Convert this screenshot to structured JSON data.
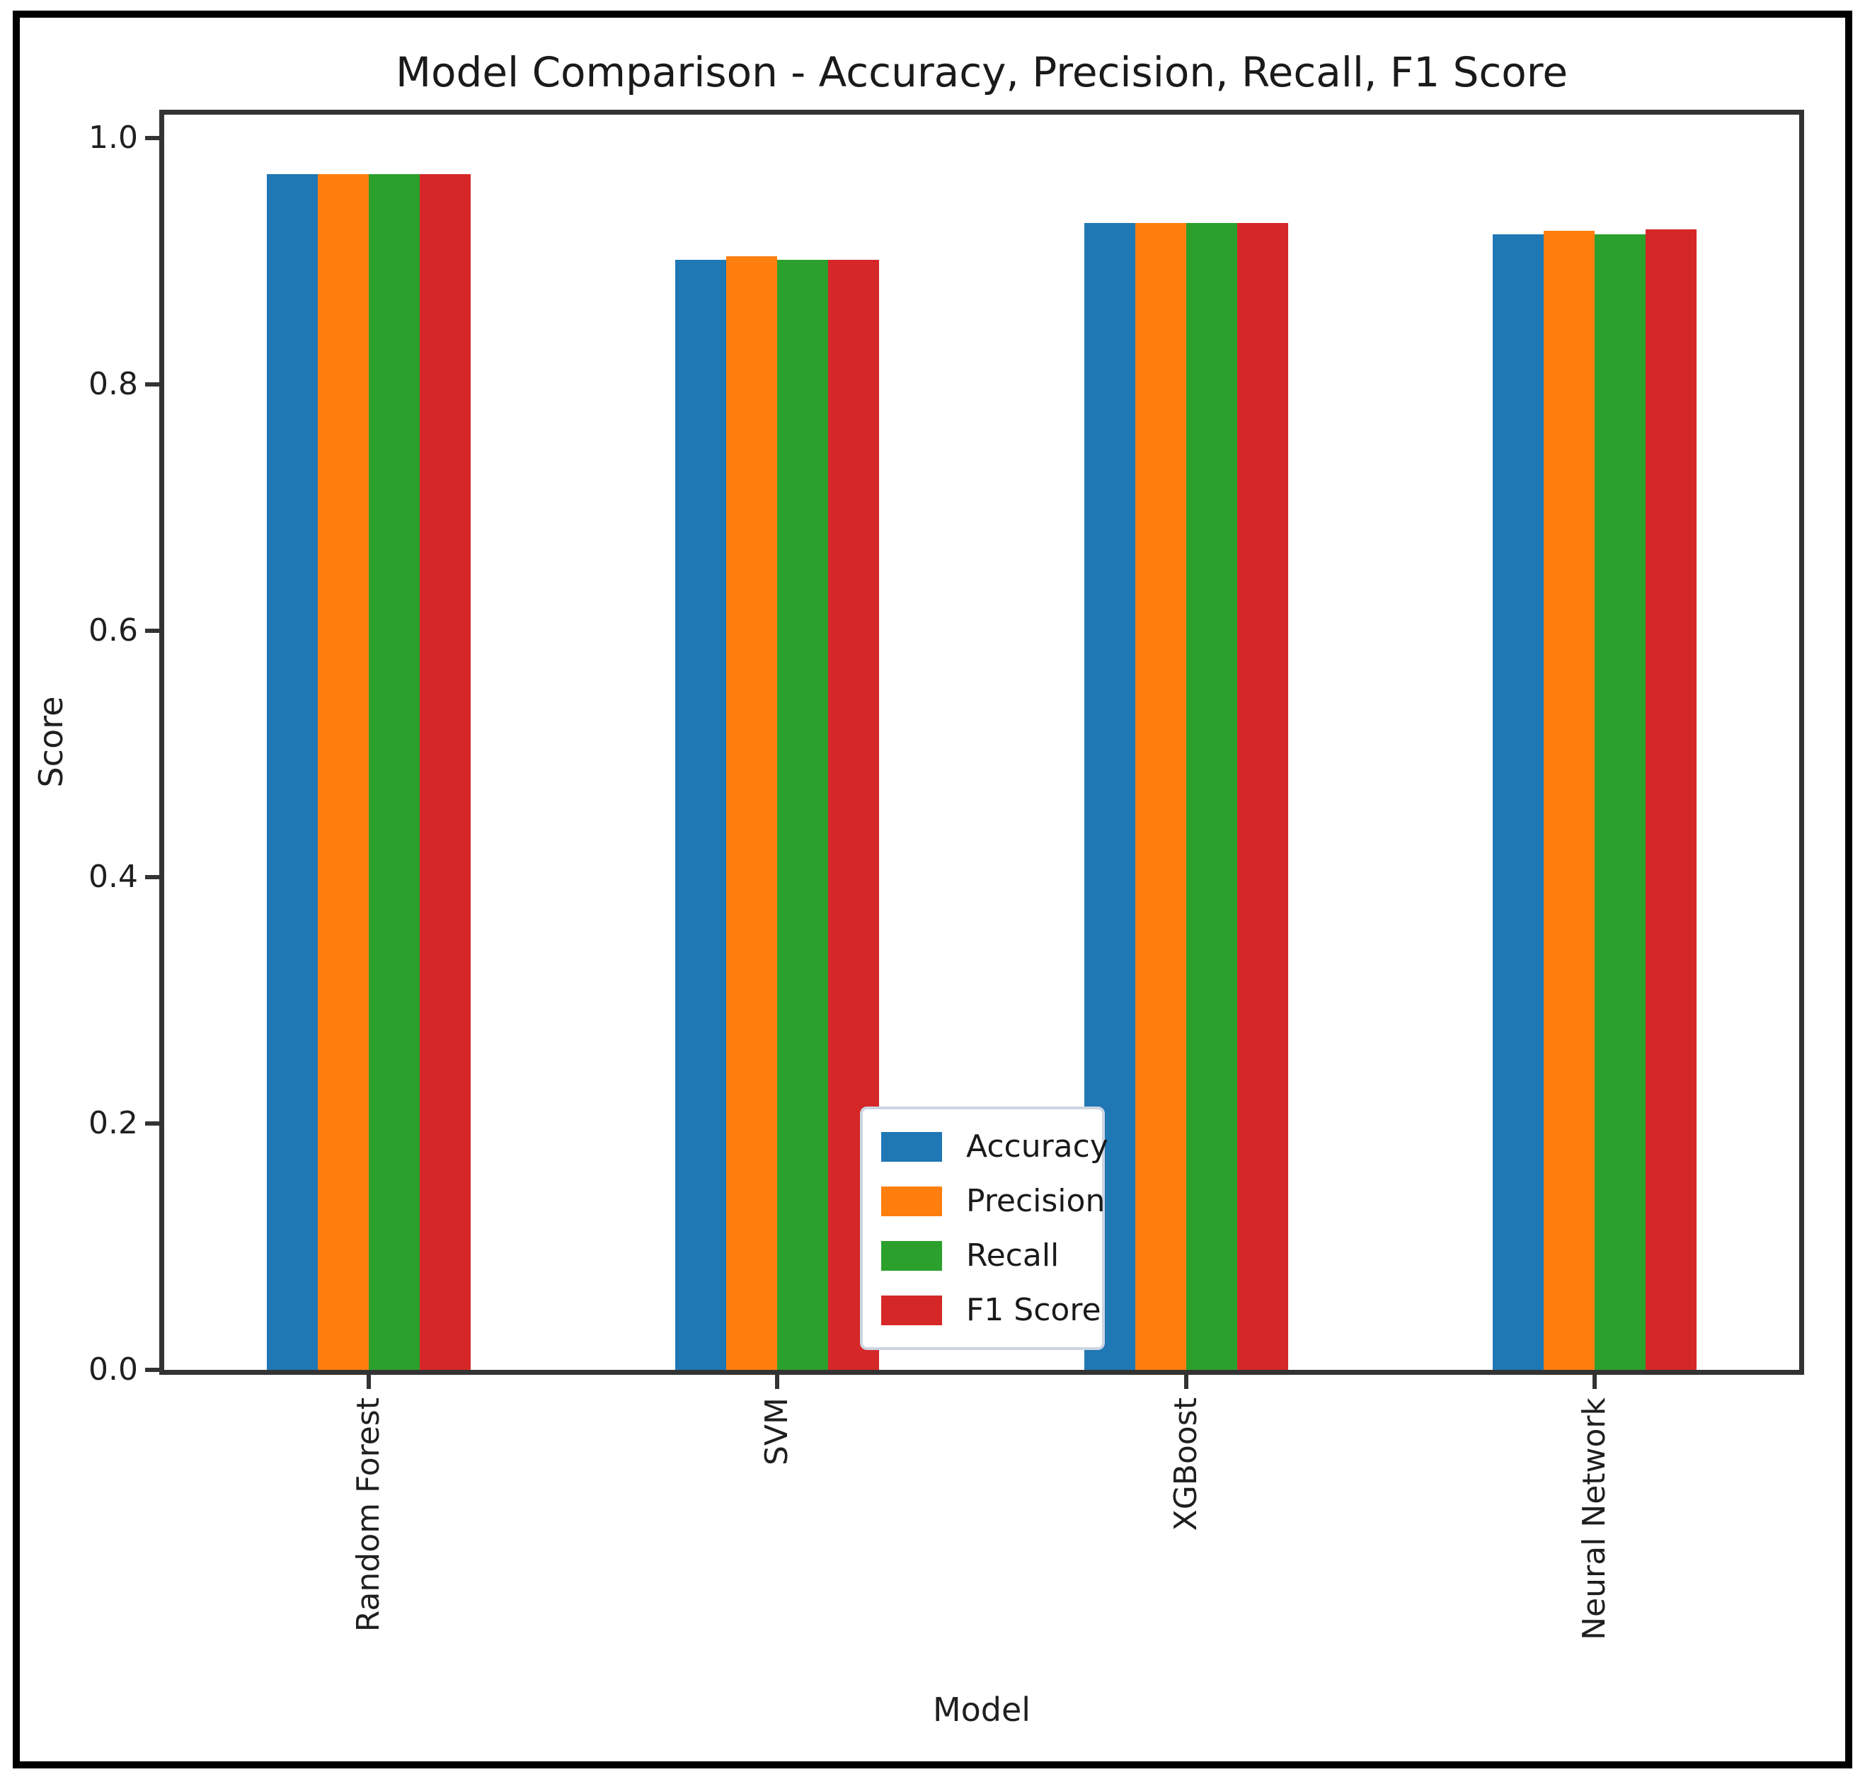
{
  "figure": {
    "title": "Model Comparison - Accuracy, Precision, Recall, F1 Score",
    "xlabel": "Model",
    "ylabel": "Score"
  },
  "chart_data": {
    "type": "bar",
    "title": "Model Comparison - Accuracy, Precision, Recall, F1 Score",
    "xlabel": "Model",
    "ylabel": "Score",
    "categories": [
      "Random Forest",
      "SVM",
      "XGBoost",
      "Neural Network"
    ],
    "series": [
      {
        "name": "Accuracy",
        "color": "#1f77b4",
        "values": [
          0.971,
          0.901,
          0.931,
          0.922
        ]
      },
      {
        "name": "Precision",
        "color": "#ff7f0e",
        "values": [
          0.971,
          0.904,
          0.931,
          0.925
        ]
      },
      {
        "name": "Recall",
        "color": "#2ca02c",
        "values": [
          0.971,
          0.901,
          0.931,
          0.922
        ]
      },
      {
        "name": "F1 Score",
        "color": "#d62728",
        "values": [
          0.971,
          0.901,
          0.931,
          0.926
        ]
      }
    ],
    "ylim": [
      0,
      1.019
    ],
    "yticks": [
      0.0,
      0.2,
      0.4,
      0.6,
      0.8,
      1.0
    ],
    "tick_label_rotation": 90,
    "grid": false,
    "legend_position": "lower center",
    "axis_colors": {
      "spine": "#333333",
      "text": "#1f1f1f"
    }
  }
}
